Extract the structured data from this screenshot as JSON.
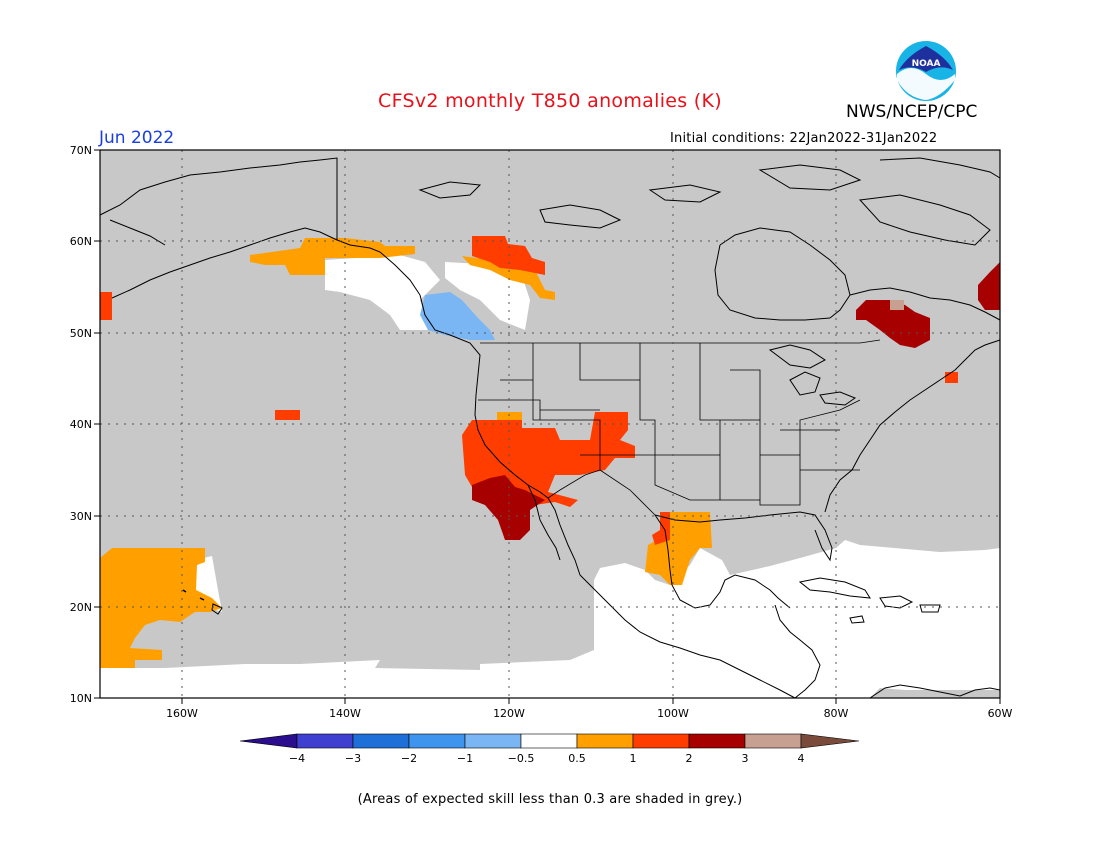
{
  "title": "CFSv2 monthly T850 anomalies (K)",
  "agency": "NWS/NCEP/CPC",
  "logo_text": "NOAA",
  "valid_month": "Jun 2022",
  "initial_conditions": "Initial conditions: 22Jan2022-31Jan2022",
  "footnote": "(Areas of expected skill less than 0.3 are shaded in grey.)",
  "latitude_labels": [
    "70N",
    "60N",
    "50N",
    "40N",
    "30N",
    "20N",
    "10N"
  ],
  "longitude_labels": [
    "160W",
    "140W",
    "120W",
    "100W",
    "80W",
    "60W"
  ],
  "colorbar": {
    "labels": [
      "-4",
      "-3",
      "-2",
      "-1",
      "-0.5",
      "0.5",
      "1",
      "2",
      "3",
      "4"
    ],
    "colors": [
      "#2a0e8e",
      "#3f3fd0",
      "#1f6fd8",
      "#3f94ee",
      "#7ab6f4",
      "#ffffff",
      "#ffa000",
      "#ff3d00",
      "#a60000",
      "#c8a092",
      "#7a4a3a"
    ]
  },
  "colors": {
    "skill_grey": "#c8c8c8",
    "orange": "#ffa000",
    "red": "#ff3d00",
    "dark_red": "#a60000",
    "light_blue": "#7ab6f4",
    "title_red": "#e8101a",
    "month_blue": "#1a3fe0"
  },
  "map_extent": {
    "lon": [
      -170,
      -60
    ],
    "lat": [
      10,
      70
    ]
  }
}
